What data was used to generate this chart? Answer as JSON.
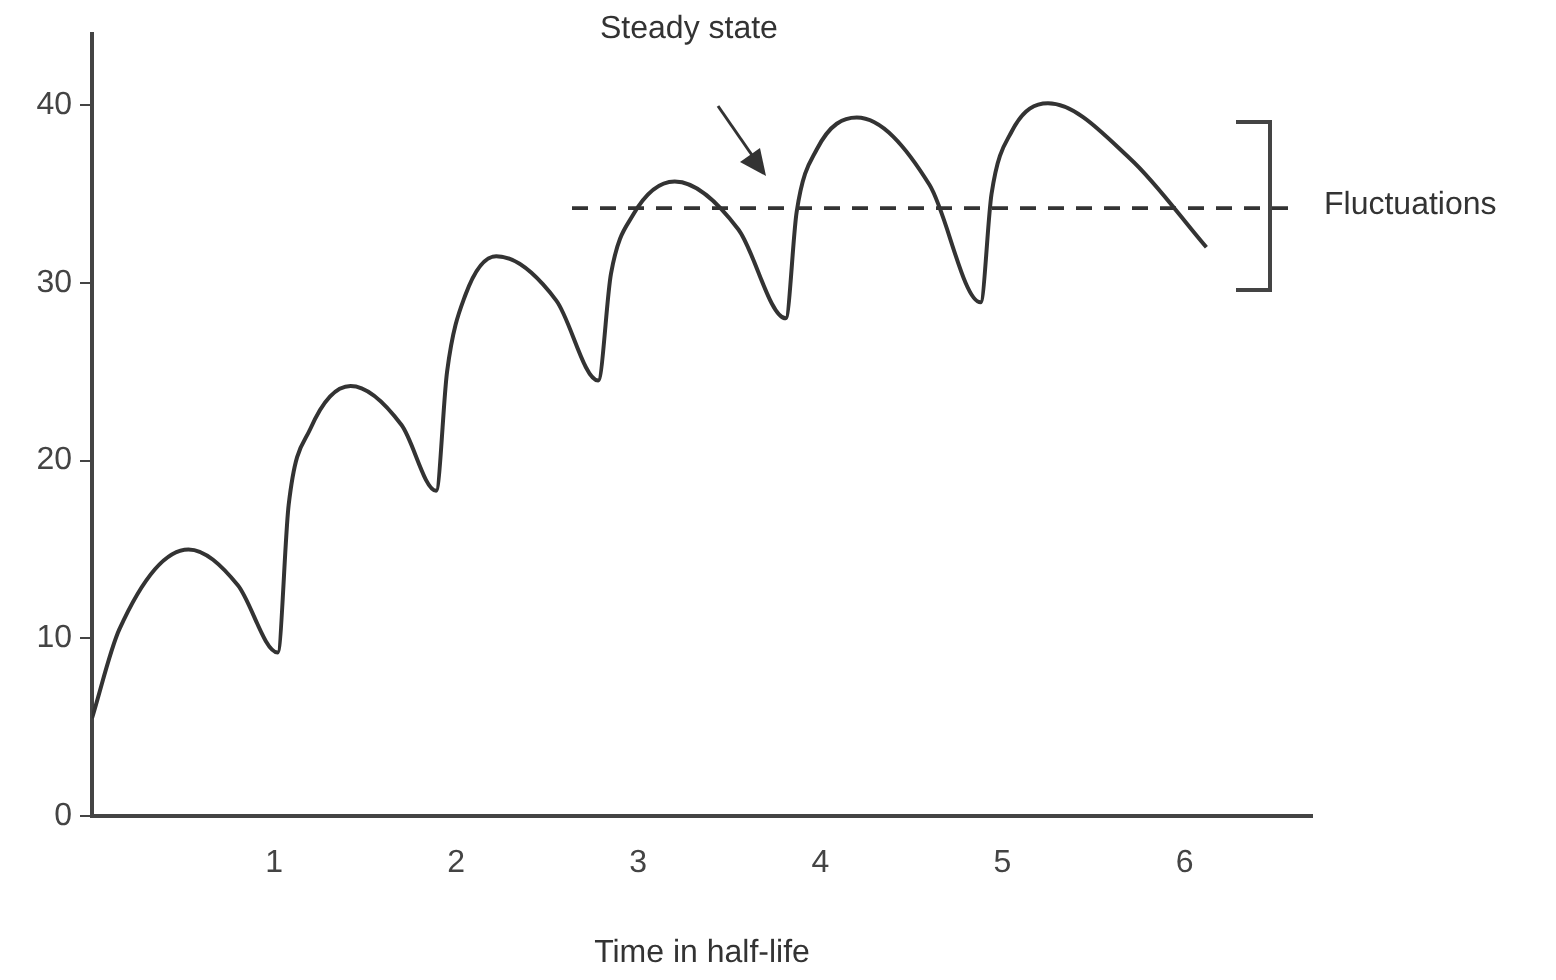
{
  "chart_data": {
    "type": "line",
    "xlabel": "Time in half-life",
    "x": [
      0,
      0.15,
      0.53,
      0.8,
      1.02,
      1.08,
      1.2,
      1.42,
      1.7,
      1.89,
      1.95,
      2.05,
      2.22,
      2.55,
      2.78,
      2.85,
      2.97,
      3.2,
      3.55,
      3.81,
      3.87,
      3.98,
      4.2,
      4.6,
      4.88,
      4.94,
      5.05,
      5.25,
      5.7,
      6.12
    ],
    "series": [
      {
        "color": "#333333",
        "values": [
          5.5,
          10.5,
          15.0,
          13.0,
          9.2,
          17.5,
          21.8,
          24.2,
          22.0,
          18.3,
          25.0,
          29.3,
          31.5,
          29.0,
          24.5,
          30.5,
          33.8,
          35.7,
          33.0,
          28.0,
          34.0,
          37.5,
          39.3,
          35.5,
          28.9,
          35.0,
          38.5,
          40.1,
          37.0,
          32.0
        ]
      }
    ],
    "xlim": [
      0,
      6.7
    ],
    "xticks": [
      1,
      2,
      3,
      4,
      5,
      6
    ],
    "ylim": [
      0,
      44
    ],
    "yticks": [
      0,
      10,
      20,
      30,
      40
    ],
    "ref_lines": [
      {
        "axis": "y",
        "value": 34.2,
        "line_style": "dashed",
        "color": "#333333"
      }
    ],
    "annotations": [
      "Steady state",
      "Fluctuations"
    ],
    "grid": false,
    "legend": false,
    "marker": "none",
    "line_style": "solid"
  }
}
